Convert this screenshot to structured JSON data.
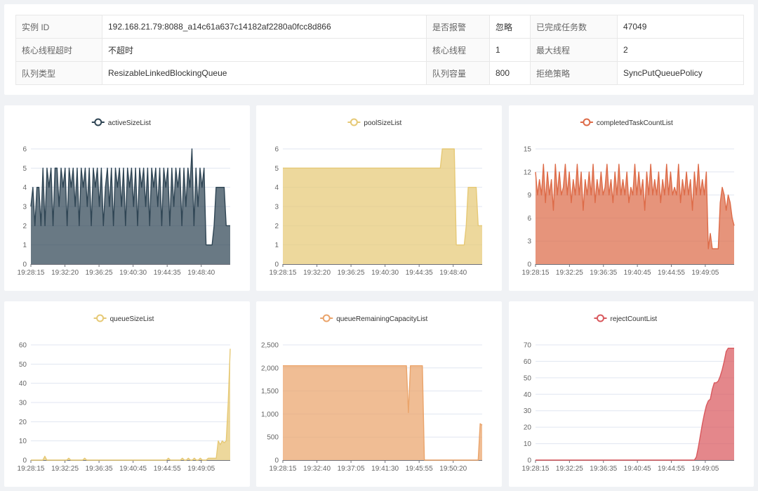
{
  "info": {
    "rows": [
      [
        {
          "label": "实例 ID",
          "value": "192.168.21.79:8088_a14c61a637c14182af2280a0fcc8d866"
        },
        {
          "label": "是否报警",
          "value": "忽略"
        },
        {
          "label": "已完成任务数",
          "value": "47049"
        }
      ],
      [
        {
          "label": "核心线程超时",
          "value": "不超时"
        },
        {
          "label": "核心线程",
          "value": "1"
        },
        {
          "label": "最大线程",
          "value": "2"
        }
      ],
      [
        {
          "label": "队列类型",
          "value": "ResizableLinkedBlockingQueue"
        },
        {
          "label": "队列容量",
          "value": "800"
        },
        {
          "label": "拒绝策略",
          "value": "SyncPutQueuePolicy"
        }
      ]
    ]
  },
  "chart_data": [
    {
      "type": "area",
      "title": "",
      "series": [
        {
          "name": "activeSizeList",
          "values": [
            3,
            4,
            2,
            4,
            4,
            2,
            5,
            2,
            5,
            4,
            5,
            2,
            5,
            5,
            3,
            5,
            4,
            5,
            2,
            5,
            4,
            5,
            3,
            5,
            2,
            5,
            4,
            5,
            3,
            5,
            2,
            5,
            4,
            5,
            3,
            5,
            2,
            4,
            5,
            3,
            5,
            2,
            5,
            4,
            5,
            3,
            5,
            2,
            5,
            4,
            5,
            3,
            5,
            2,
            5,
            4,
            5,
            3,
            5,
            2,
            5,
            4,
            5,
            3,
            5,
            2,
            5,
            4,
            5,
            2,
            5,
            3,
            5,
            4,
            5,
            2,
            5,
            3,
            5,
            4,
            6,
            2,
            5,
            3,
            5,
            4,
            5,
            1,
            1,
            1,
            1,
            2,
            4,
            4,
            4,
            4,
            4,
            2,
            2,
            2
          ]
        }
      ],
      "x_ticks": [
        "19:28:15",
        "19:32:20",
        "19:36:25",
        "19:40:30",
        "19:44:35",
        "19:48:40"
      ],
      "ylim": [
        0,
        6
      ],
      "y_ticks": [
        "0",
        "1",
        "2",
        "3",
        "4",
        "5",
        "6"
      ],
      "color": "#2f4554",
      "legend_position": "top-center"
    },
    {
      "type": "area",
      "title": "",
      "series": [
        {
          "name": "poolSizeList",
          "values": [
            5,
            5,
            5,
            5,
            5,
            5,
            5,
            5,
            5,
            5,
            5,
            5,
            5,
            5,
            5,
            5,
            5,
            5,
            5,
            5,
            5,
            5,
            5,
            5,
            5,
            5,
            5,
            5,
            5,
            5,
            5,
            5,
            5,
            5,
            5,
            5,
            5,
            5,
            5,
            5,
            5,
            5,
            5,
            5,
            5,
            5,
            5,
            5,
            5,
            5,
            5,
            5,
            5,
            5,
            5,
            5,
            5,
            5,
            5,
            5,
            5,
            5,
            5,
            5,
            5,
            5,
            5,
            5,
            5,
            5,
            5,
            5,
            5,
            5,
            5,
            5,
            5,
            5,
            5,
            5,
            6,
            6,
            6,
            6,
            6,
            6,
            6,
            1,
            1,
            1,
            1,
            1,
            2,
            4,
            4,
            4,
            4,
            4,
            2,
            2,
            2
          ]
        }
      ],
      "x_ticks": [
        "19:28:15",
        "19:32:20",
        "19:36:25",
        "19:40:30",
        "19:44:35",
        "19:48:40"
      ],
      "ylim": [
        0,
        6
      ],
      "y_ticks": [
        "0",
        "1",
        "2",
        "3",
        "4",
        "5",
        "6"
      ],
      "color": "#e6c976",
      "legend_position": "top-center"
    },
    {
      "type": "area",
      "title": "",
      "series": [
        {
          "name": "completedTaskCountList",
          "values": [
            12,
            9,
            11,
            9,
            13,
            8,
            12,
            9,
            11,
            7,
            13,
            9,
            12,
            9,
            10,
            13,
            9,
            12,
            8,
            11,
            9,
            13,
            9,
            12,
            7,
            11,
            9,
            12,
            9,
            13,
            8,
            11,
            9,
            12,
            9,
            10,
            13,
            9,
            11,
            8,
            12,
            9,
            13,
            9,
            11,
            9,
            12,
            8,
            10,
            9,
            13,
            9,
            12,
            9,
            11,
            7,
            12,
            9,
            13,
            9,
            11,
            9,
            12,
            8,
            11,
            9,
            13,
            9,
            12,
            9,
            10,
            9,
            13,
            8,
            11,
            9,
            12,
            9,
            11,
            7,
            12,
            9,
            13,
            9,
            11,
            9,
            12,
            2,
            4,
            2,
            2,
            2,
            2,
            8,
            10,
            9,
            7,
            9,
            8,
            6,
            5
          ]
        }
      ],
      "x_ticks": [
        "19:28:15",
        "19:32:25",
        "19:36:35",
        "19:40:45",
        "19:44:55",
        "19:49:05"
      ],
      "ylim": [
        0,
        15
      ],
      "y_ticks": [
        "0",
        "3",
        "6",
        "9",
        "12",
        "15"
      ],
      "color": "#dd6b48",
      "legend_position": "top-center"
    },
    {
      "type": "area",
      "title": "",
      "series": [
        {
          "name": "queueSizeList",
          "values": [
            0,
            0,
            0,
            0,
            0,
            0,
            0,
            2,
            0,
            0,
            0,
            0,
            0,
            0,
            0,
            0,
            0,
            0,
            0,
            1,
            0,
            0,
            0,
            0,
            0,
            0,
            0,
            1,
            0,
            0,
            0,
            0,
            0,
            0,
            0,
            0,
            0,
            0,
            0,
            0,
            0,
            0,
            0,
            0,
            0,
            0,
            0,
            0,
            0,
            0,
            0,
            0,
            0,
            0,
            0,
            0,
            0,
            0,
            0,
            0,
            0,
            0,
            0,
            0,
            0,
            0,
            0,
            0,
            0,
            1,
            0,
            0,
            0,
            0,
            0,
            0,
            1,
            0,
            0,
            1,
            0,
            0,
            1,
            0,
            0,
            1,
            0,
            0,
            0,
            1,
            1,
            1,
            1,
            1,
            10,
            8,
            10,
            9,
            10,
            30,
            58
          ]
        }
      ],
      "x_ticks": [
        "19:28:15",
        "19:32:25",
        "19:36:35",
        "19:40:45",
        "19:44:55",
        "19:49:05"
      ],
      "ylim": [
        0,
        60
      ],
      "y_ticks": [
        "0",
        "10",
        "20",
        "30",
        "40",
        "50",
        "60"
      ],
      "color": "#e6c976",
      "legend_position": "top-center"
    },
    {
      "type": "area",
      "title": "",
      "series": [
        {
          "name": "queueRemainingCapacityList",
          "values": [
            2048,
            2048,
            2048,
            2048,
            2048,
            2048,
            2048,
            2048,
            2048,
            2048,
            2048,
            2048,
            2048,
            2048,
            2048,
            2048,
            2048,
            2048,
            2048,
            2048,
            2048,
            2048,
            2048,
            2048,
            2048,
            2048,
            2048,
            2048,
            2048,
            2048,
            2048,
            2048,
            2048,
            2048,
            2048,
            2048,
            2048,
            2048,
            2048,
            2048,
            2048,
            2048,
            2048,
            2048,
            2048,
            2048,
            2048,
            2048,
            2048,
            2048,
            2048,
            2048,
            2048,
            2048,
            2048,
            2048,
            2048,
            2048,
            2048,
            2048,
            2048,
            2048,
            2048,
            1030,
            2048,
            2048,
            2048,
            2048,
            2048,
            2048,
            2048,
            0,
            0,
            0,
            0,
            0,
            0,
            0,
            0,
            0,
            0,
            0,
            0,
            0,
            0,
            0,
            0,
            0,
            0,
            0,
            0,
            0,
            0,
            0,
            0,
            0,
            0,
            0,
            0,
            790,
            760
          ]
        }
      ],
      "x_ticks": [
        "19:28:15",
        "19:32:40",
        "19:37:05",
        "19:41:30",
        "19:45:55",
        "19:50:20"
      ],
      "ylim": [
        0,
        2500
      ],
      "y_ticks": [
        "0",
        "500",
        "1,000",
        "1,500",
        "2,000",
        "2,500"
      ],
      "color": "#eaa46b",
      "legend_position": "top-center"
    },
    {
      "type": "area",
      "title": "",
      "series": [
        {
          "name": "rejectCountList",
          "values": [
            0,
            0,
            0,
            0,
            0,
            0,
            0,
            0,
            0,
            0,
            0,
            0,
            0,
            0,
            0,
            0,
            0,
            0,
            0,
            0,
            0,
            0,
            0,
            0,
            0,
            0,
            0,
            0,
            0,
            0,
            0,
            0,
            0,
            0,
            0,
            0,
            0,
            0,
            0,
            0,
            0,
            0,
            0,
            0,
            0,
            0,
            0,
            0,
            0,
            0,
            0,
            0,
            0,
            0,
            0,
            0,
            0,
            0,
            0,
            0,
            0,
            0,
            0,
            0,
            0,
            0,
            0,
            0,
            0,
            0,
            0,
            0,
            0,
            0,
            0,
            0,
            0,
            0,
            0,
            0,
            0,
            2,
            8,
            15,
            22,
            28,
            33,
            36,
            37,
            43,
            47,
            47,
            48,
            51,
            55,
            60,
            66,
            68,
            68,
            68,
            68
          ]
        }
      ],
      "x_ticks": [
        "19:28:15",
        "19:32:25",
        "19:36:35",
        "19:40:45",
        "19:44:55",
        "19:49:05"
      ],
      "ylim": [
        0,
        70
      ],
      "y_ticks": [
        "0",
        "10",
        "20",
        "30",
        "40",
        "50",
        "60",
        "70"
      ],
      "color": "#d9595e",
      "legend_position": "top-center"
    }
  ]
}
